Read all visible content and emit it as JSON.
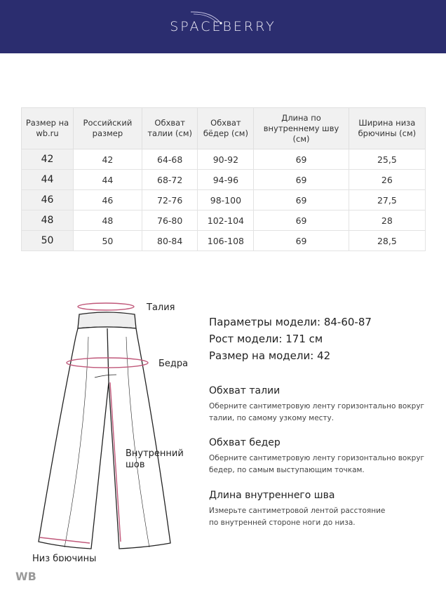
{
  "brand": {
    "logo": "SPACEBERRY",
    "header_color": "#2b2d6f"
  },
  "table": {
    "headers": [
      "Размер на wb.ru",
      "Российский размер",
      "Обхват талии (см)",
      "Обхват бёдер (см)",
      "Длина по внутреннему шву (см)",
      "Ширина низа брючины (см)"
    ],
    "rows": [
      [
        "42",
        "42",
        "64-68",
        "90-92",
        "69",
        "25,5"
      ],
      [
        "44",
        "44",
        "68-72",
        "94-96",
        "69",
        "26"
      ],
      [
        "46",
        "46",
        "72-76",
        "98-100",
        "69",
        "27,5"
      ],
      [
        "48",
        "48",
        "76-80",
        "102-104",
        "69",
        "28"
      ],
      [
        "50",
        "50",
        "80-84",
        "106-108",
        "69",
        "28,5"
      ]
    ]
  },
  "diagram": {
    "labels": {
      "waist": "Талия",
      "hips": "Бедра",
      "inseam_1": "Внутренний",
      "inseam_2": "шов",
      "hem": "Низ брючины"
    },
    "accent": "#c0587a"
  },
  "model": {
    "params": "Параметры модели: 84-60-87",
    "height": "Рост модели: 171 см",
    "size": "Размер на модели: 42"
  },
  "instructions": [
    {
      "title": "Обхват талии",
      "line1": "Оберните сантиметровую ленту горизонтально вокруг",
      "line2": "талии, по самому узкому месту."
    },
    {
      "title": "Обхват бедер",
      "line1": "Оберните сантиметровую ленту горизонтально вокруг",
      "line2": "бедер, по самым выступающим точкам."
    },
    {
      "title": "Длина внутреннего шва",
      "line1": "Измерьте сантиметровой лентой расстояние",
      "line2": "по внутренней стороне ноги до низа."
    }
  ],
  "watermark": "WB"
}
